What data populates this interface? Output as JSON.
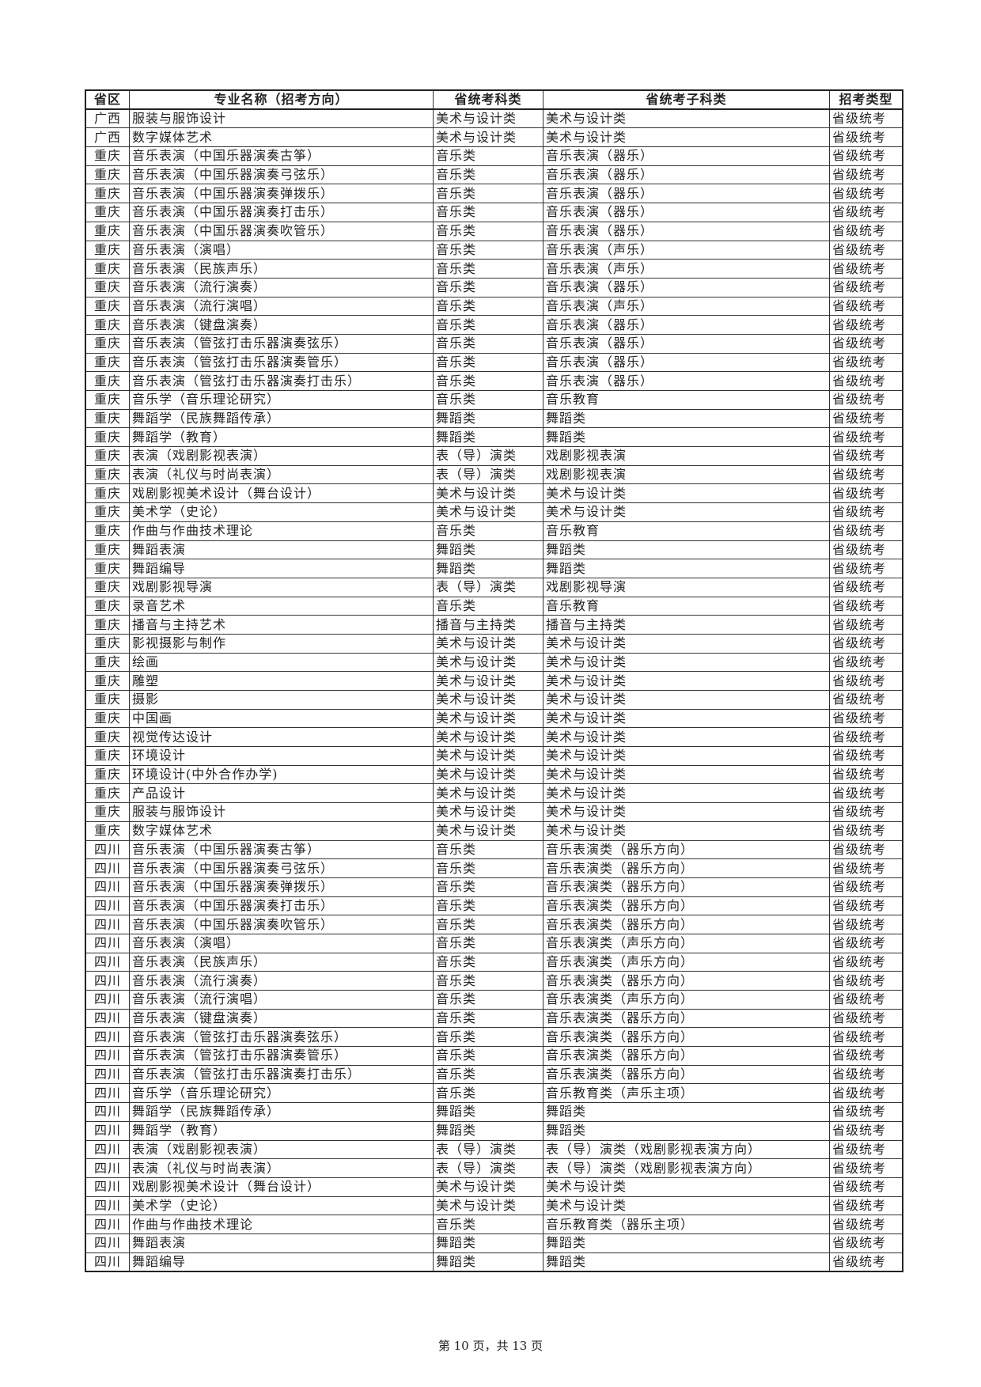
{
  "table": {
    "headers": [
      "省区",
      "专业名称（招考方向）",
      "省统考科类",
      "省统考子科类",
      "招考类型"
    ],
    "rows": [
      [
        "广西",
        "服装与服饰设计",
        "美术与设计类",
        "美术与设计类",
        "省级统考"
      ],
      [
        "广西",
        "数字媒体艺术",
        "美术与设计类",
        "美术与设计类",
        "省级统考"
      ],
      [
        "重庆",
        "音乐表演（中国乐器演奏古筝）",
        "音乐类",
        "音乐表演（器乐）",
        "省级统考"
      ],
      [
        "重庆",
        "音乐表演（中国乐器演奏弓弦乐）",
        "音乐类",
        "音乐表演（器乐）",
        "省级统考"
      ],
      [
        "重庆",
        "音乐表演（中国乐器演奏弹拨乐）",
        "音乐类",
        "音乐表演（器乐）",
        "省级统考"
      ],
      [
        "重庆",
        "音乐表演（中国乐器演奏打击乐）",
        "音乐类",
        "音乐表演（器乐）",
        "省级统考"
      ],
      [
        "重庆",
        "音乐表演（中国乐器演奏吹管乐）",
        "音乐类",
        "音乐表演（器乐）",
        "省级统考"
      ],
      [
        "重庆",
        "音乐表演（演唱）",
        "音乐类",
        "音乐表演（声乐）",
        "省级统考"
      ],
      [
        "重庆",
        "音乐表演（民族声乐）",
        "音乐类",
        "音乐表演（声乐）",
        "省级统考"
      ],
      [
        "重庆",
        "音乐表演（流行演奏）",
        "音乐类",
        "音乐表演（器乐）",
        "省级统考"
      ],
      [
        "重庆",
        "音乐表演（流行演唱）",
        "音乐类",
        "音乐表演（声乐）",
        "省级统考"
      ],
      [
        "重庆",
        "音乐表演（键盘演奏）",
        "音乐类",
        "音乐表演（器乐）",
        "省级统考"
      ],
      [
        "重庆",
        "音乐表演（管弦打击乐器演奏弦乐）",
        "音乐类",
        "音乐表演（器乐）",
        "省级统考"
      ],
      [
        "重庆",
        "音乐表演（管弦打击乐器演奏管乐）",
        "音乐类",
        "音乐表演（器乐）",
        "省级统考"
      ],
      [
        "重庆",
        "音乐表演（管弦打击乐器演奏打击乐）",
        "音乐类",
        "音乐表演（器乐）",
        "省级统考"
      ],
      [
        "重庆",
        "音乐学（音乐理论研究）",
        "音乐类",
        "音乐教育",
        "省级统考"
      ],
      [
        "重庆",
        "舞蹈学（民族舞蹈传承）",
        "舞蹈类",
        "舞蹈类",
        "省级统考"
      ],
      [
        "重庆",
        "舞蹈学（教育）",
        "舞蹈类",
        "舞蹈类",
        "省级统考"
      ],
      [
        "重庆",
        "表演（戏剧影视表演）",
        "表（导）演类",
        "戏剧影视表演",
        "省级统考"
      ],
      [
        "重庆",
        "表演（礼仪与时尚表演）",
        "表（导）演类",
        "戏剧影视表演",
        "省级统考"
      ],
      [
        "重庆",
        "戏剧影视美术设计（舞台设计）",
        "美术与设计类",
        "美术与设计类",
        "省级统考"
      ],
      [
        "重庆",
        "美术学（史论）",
        "美术与设计类",
        "美术与设计类",
        "省级统考"
      ],
      [
        "重庆",
        "作曲与作曲技术理论",
        "音乐类",
        "音乐教育",
        "省级统考"
      ],
      [
        "重庆",
        "舞蹈表演",
        "舞蹈类",
        "舞蹈类",
        "省级统考"
      ],
      [
        "重庆",
        "舞蹈编导",
        "舞蹈类",
        "舞蹈类",
        "省级统考"
      ],
      [
        "重庆",
        "戏剧影视导演",
        "表（导）演类",
        "戏剧影视导演",
        "省级统考"
      ],
      [
        "重庆",
        "录音艺术",
        "音乐类",
        "音乐教育",
        "省级统考"
      ],
      [
        "重庆",
        "播音与主持艺术",
        "播音与主持类",
        "播音与主持类",
        "省级统考"
      ],
      [
        "重庆",
        "影视摄影与制作",
        "美术与设计类",
        "美术与设计类",
        "省级统考"
      ],
      [
        "重庆",
        "绘画",
        "美术与设计类",
        "美术与设计类",
        "省级统考"
      ],
      [
        "重庆",
        "雕塑",
        "美术与设计类",
        "美术与设计类",
        "省级统考"
      ],
      [
        "重庆",
        "摄影",
        "美术与设计类",
        "美术与设计类",
        "省级统考"
      ],
      [
        "重庆",
        "中国画",
        "美术与设计类",
        "美术与设计类",
        "省级统考"
      ],
      [
        "重庆",
        "视觉传达设计",
        "美术与设计类",
        "美术与设计类",
        "省级统考"
      ],
      [
        "重庆",
        "环境设计",
        "美术与设计类",
        "美术与设计类",
        "省级统考"
      ],
      [
        "重庆",
        "环境设计(中外合作办学)",
        "美术与设计类",
        "美术与设计类",
        "省级统考"
      ],
      [
        "重庆",
        "产品设计",
        "美术与设计类",
        "美术与设计类",
        "省级统考"
      ],
      [
        "重庆",
        "服装与服饰设计",
        "美术与设计类",
        "美术与设计类",
        "省级统考"
      ],
      [
        "重庆",
        "数字媒体艺术",
        "美术与设计类",
        "美术与设计类",
        "省级统考"
      ],
      [
        "四川",
        "音乐表演（中国乐器演奏古筝）",
        "音乐类",
        "音乐表演类（器乐方向）",
        "省级统考"
      ],
      [
        "四川",
        "音乐表演（中国乐器演奏弓弦乐）",
        "音乐类",
        "音乐表演类（器乐方向）",
        "省级统考"
      ],
      [
        "四川",
        "音乐表演（中国乐器演奏弹拨乐）",
        "音乐类",
        "音乐表演类（器乐方向）",
        "省级统考"
      ],
      [
        "四川",
        "音乐表演（中国乐器演奏打击乐）",
        "音乐类",
        "音乐表演类（器乐方向）",
        "省级统考"
      ],
      [
        "四川",
        "音乐表演（中国乐器演奏吹管乐）",
        "音乐类",
        "音乐表演类（器乐方向）",
        "省级统考"
      ],
      [
        "四川",
        "音乐表演（演唱）",
        "音乐类",
        "音乐表演类（声乐方向）",
        "省级统考"
      ],
      [
        "四川",
        "音乐表演（民族声乐）",
        "音乐类",
        "音乐表演类（声乐方向）",
        "省级统考"
      ],
      [
        "四川",
        "音乐表演（流行演奏）",
        "音乐类",
        "音乐表演类（器乐方向）",
        "省级统考"
      ],
      [
        "四川",
        "音乐表演（流行演唱）",
        "音乐类",
        "音乐表演类（声乐方向）",
        "省级统考"
      ],
      [
        "四川",
        "音乐表演（键盘演奏）",
        "音乐类",
        "音乐表演类（器乐方向）",
        "省级统考"
      ],
      [
        "四川",
        "音乐表演（管弦打击乐器演奏弦乐）",
        "音乐类",
        "音乐表演类（器乐方向）",
        "省级统考"
      ],
      [
        "四川",
        "音乐表演（管弦打击乐器演奏管乐）",
        "音乐类",
        "音乐表演类（器乐方向）",
        "省级统考"
      ],
      [
        "四川",
        "音乐表演（管弦打击乐器演奏打击乐）",
        "音乐类",
        "音乐表演类（器乐方向）",
        "省级统考"
      ],
      [
        "四川",
        "音乐学（音乐理论研究）",
        "音乐类",
        "音乐教育类（声乐主项）",
        "省级统考"
      ],
      [
        "四川",
        "舞蹈学（民族舞蹈传承）",
        "舞蹈类",
        "舞蹈类",
        "省级统考"
      ],
      [
        "四川",
        "舞蹈学（教育）",
        "舞蹈类",
        "舞蹈类",
        "省级统考"
      ],
      [
        "四川",
        "表演（戏剧影视表演）",
        "表（导）演类",
        "表（导）演类（戏剧影视表演方向）",
        "省级统考"
      ],
      [
        "四川",
        "表演（礼仪与时尚表演）",
        "表（导）演类",
        "表（导）演类（戏剧影视表演方向）",
        "省级统考"
      ],
      [
        "四川",
        "戏剧影视美术设计（舞台设计）",
        "美术与设计类",
        "美术与设计类",
        "省级统考"
      ],
      [
        "四川",
        "美术学（史论）",
        "美术与设计类",
        "美术与设计类",
        "省级统考"
      ],
      [
        "四川",
        "作曲与作曲技术理论",
        "音乐类",
        "音乐教育类（器乐主项）",
        "省级统考"
      ],
      [
        "四川",
        "舞蹈表演",
        "舞蹈类",
        "舞蹈类",
        "省级统考"
      ],
      [
        "四川",
        "舞蹈编导",
        "舞蹈类",
        "舞蹈类",
        "省级统考"
      ]
    ]
  },
  "footer": {
    "page_label": "第 10 页，共 13 页"
  }
}
